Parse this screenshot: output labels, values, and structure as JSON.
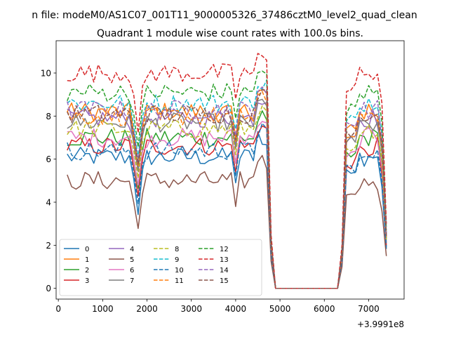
{
  "chart_data": {
    "type": "line",
    "suptitle": "n file: modeM0/AS1C07_001T11_9000005326_37486cztM0_level2_quad_clean",
    "title": "Quadrant 1 module wise count rates with 100.0s bins.",
    "xlabel": "",
    "ylabel": "",
    "offset_text": "+3.9991e8",
    "xlim": [
      -50,
      7800
    ],
    "ylim": [
      -0.5,
      11.5
    ],
    "xticks": [
      0,
      1000,
      2000,
      3000,
      4000,
      5000,
      6000,
      7000
    ],
    "yticks": [
      0,
      2,
      4,
      6,
      8,
      10
    ],
    "x_start": 200,
    "x_step": 100,
    "x_end": 7400,
    "grid": false,
    "legend_position": "lower-left",
    "legend_columns": 4,
    "colors": [
      "#1f77b4",
      "#ff7f0e",
      "#2ca02c",
      "#d62728",
      "#9467bd",
      "#8c564b",
      "#e377c2",
      "#7f7f7f",
      "#bcbd22",
      "#17becf"
    ],
    "series": [
      {
        "name": "0",
        "base": 6.1,
        "style": "solid"
      },
      {
        "name": "1",
        "base": 8.2,
        "style": "solid"
      },
      {
        "name": "2",
        "base": 7.0,
        "style": "solid"
      },
      {
        "name": "3",
        "base": 6.6,
        "style": "solid"
      },
      {
        "name": "4",
        "base": 7.9,
        "style": "solid"
      },
      {
        "name": "5",
        "base": 5.0,
        "style": "solid"
      },
      {
        "name": "6",
        "base": 7.0,
        "style": "solid"
      },
      {
        "name": "7",
        "base": 7.7,
        "style": "solid"
      },
      {
        "name": "8",
        "base": 7.4,
        "style": "dashed"
      },
      {
        "name": "9",
        "base": 8.6,
        "style": "dashed"
      },
      {
        "name": "10",
        "base": 6.4,
        "style": "dashed"
      },
      {
        "name": "11",
        "base": 8.0,
        "style": "dashed"
      },
      {
        "name": "12",
        "base": 9.1,
        "style": "dashed"
      },
      {
        "name": "13",
        "base": 10.0,
        "style": "dashed"
      },
      {
        "name": "14",
        "base": 8.3,
        "style": "dashed"
      },
      {
        "name": "15",
        "base": 8.1,
        "style": "dashed"
      }
    ]
  }
}
